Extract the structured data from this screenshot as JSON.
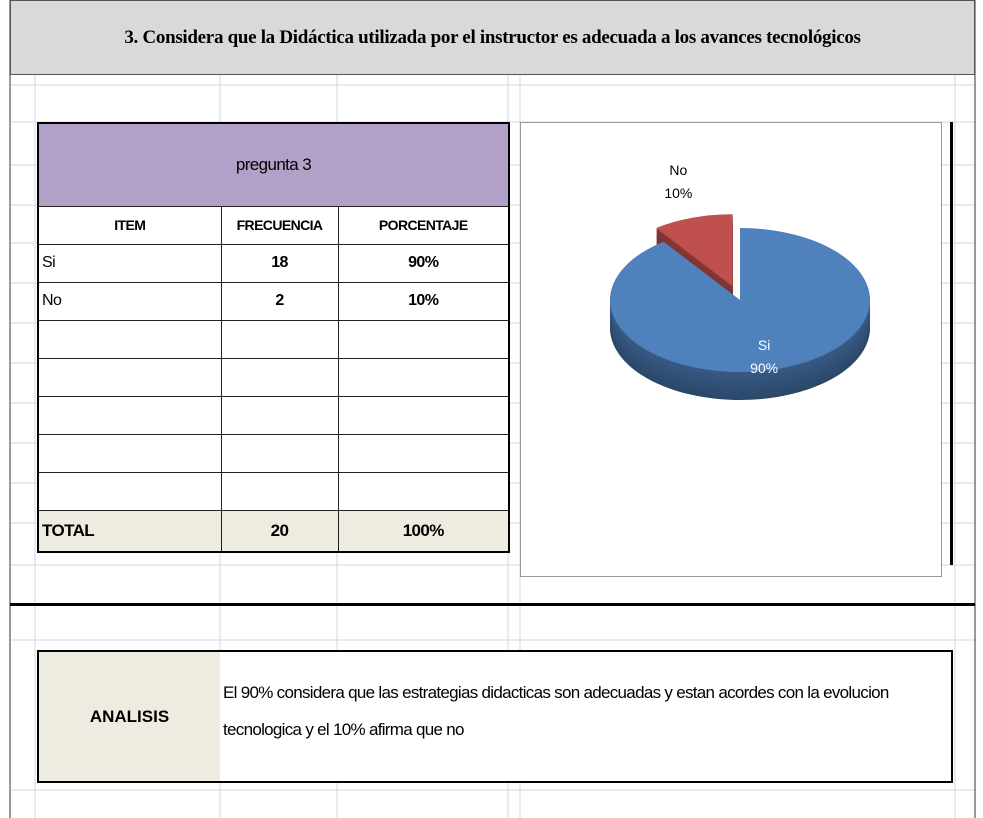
{
  "title": "3. Considera que la Didáctica utilizada por el instructor es adecuada a los avances tecnológicos",
  "table": {
    "caption": "pregunta 3",
    "columns": [
      "ITEM",
      "FRECUENCIA",
      "PORCENTAJE"
    ],
    "rows": [
      [
        "Si",
        "18",
        "90%"
      ],
      [
        "No",
        "2",
        "10%"
      ]
    ],
    "total": [
      "TOTAL",
      "20",
      "100%"
    ]
  },
  "chart_data": {
    "type": "pie",
    "categories": [
      "Si",
      "No"
    ],
    "values": [
      90,
      10
    ],
    "value_labels": [
      "90%",
      "10%"
    ],
    "colors": [
      "#4f81bd",
      "#c0504d"
    ],
    "explode": [
      false,
      true
    ]
  },
  "analysis": {
    "label": "ANALISIS",
    "text": "El 90% considera que las estrategias didacticas son adecuadas y estan acordes con la evolucion tecnologica y el 10% afirma que no"
  }
}
